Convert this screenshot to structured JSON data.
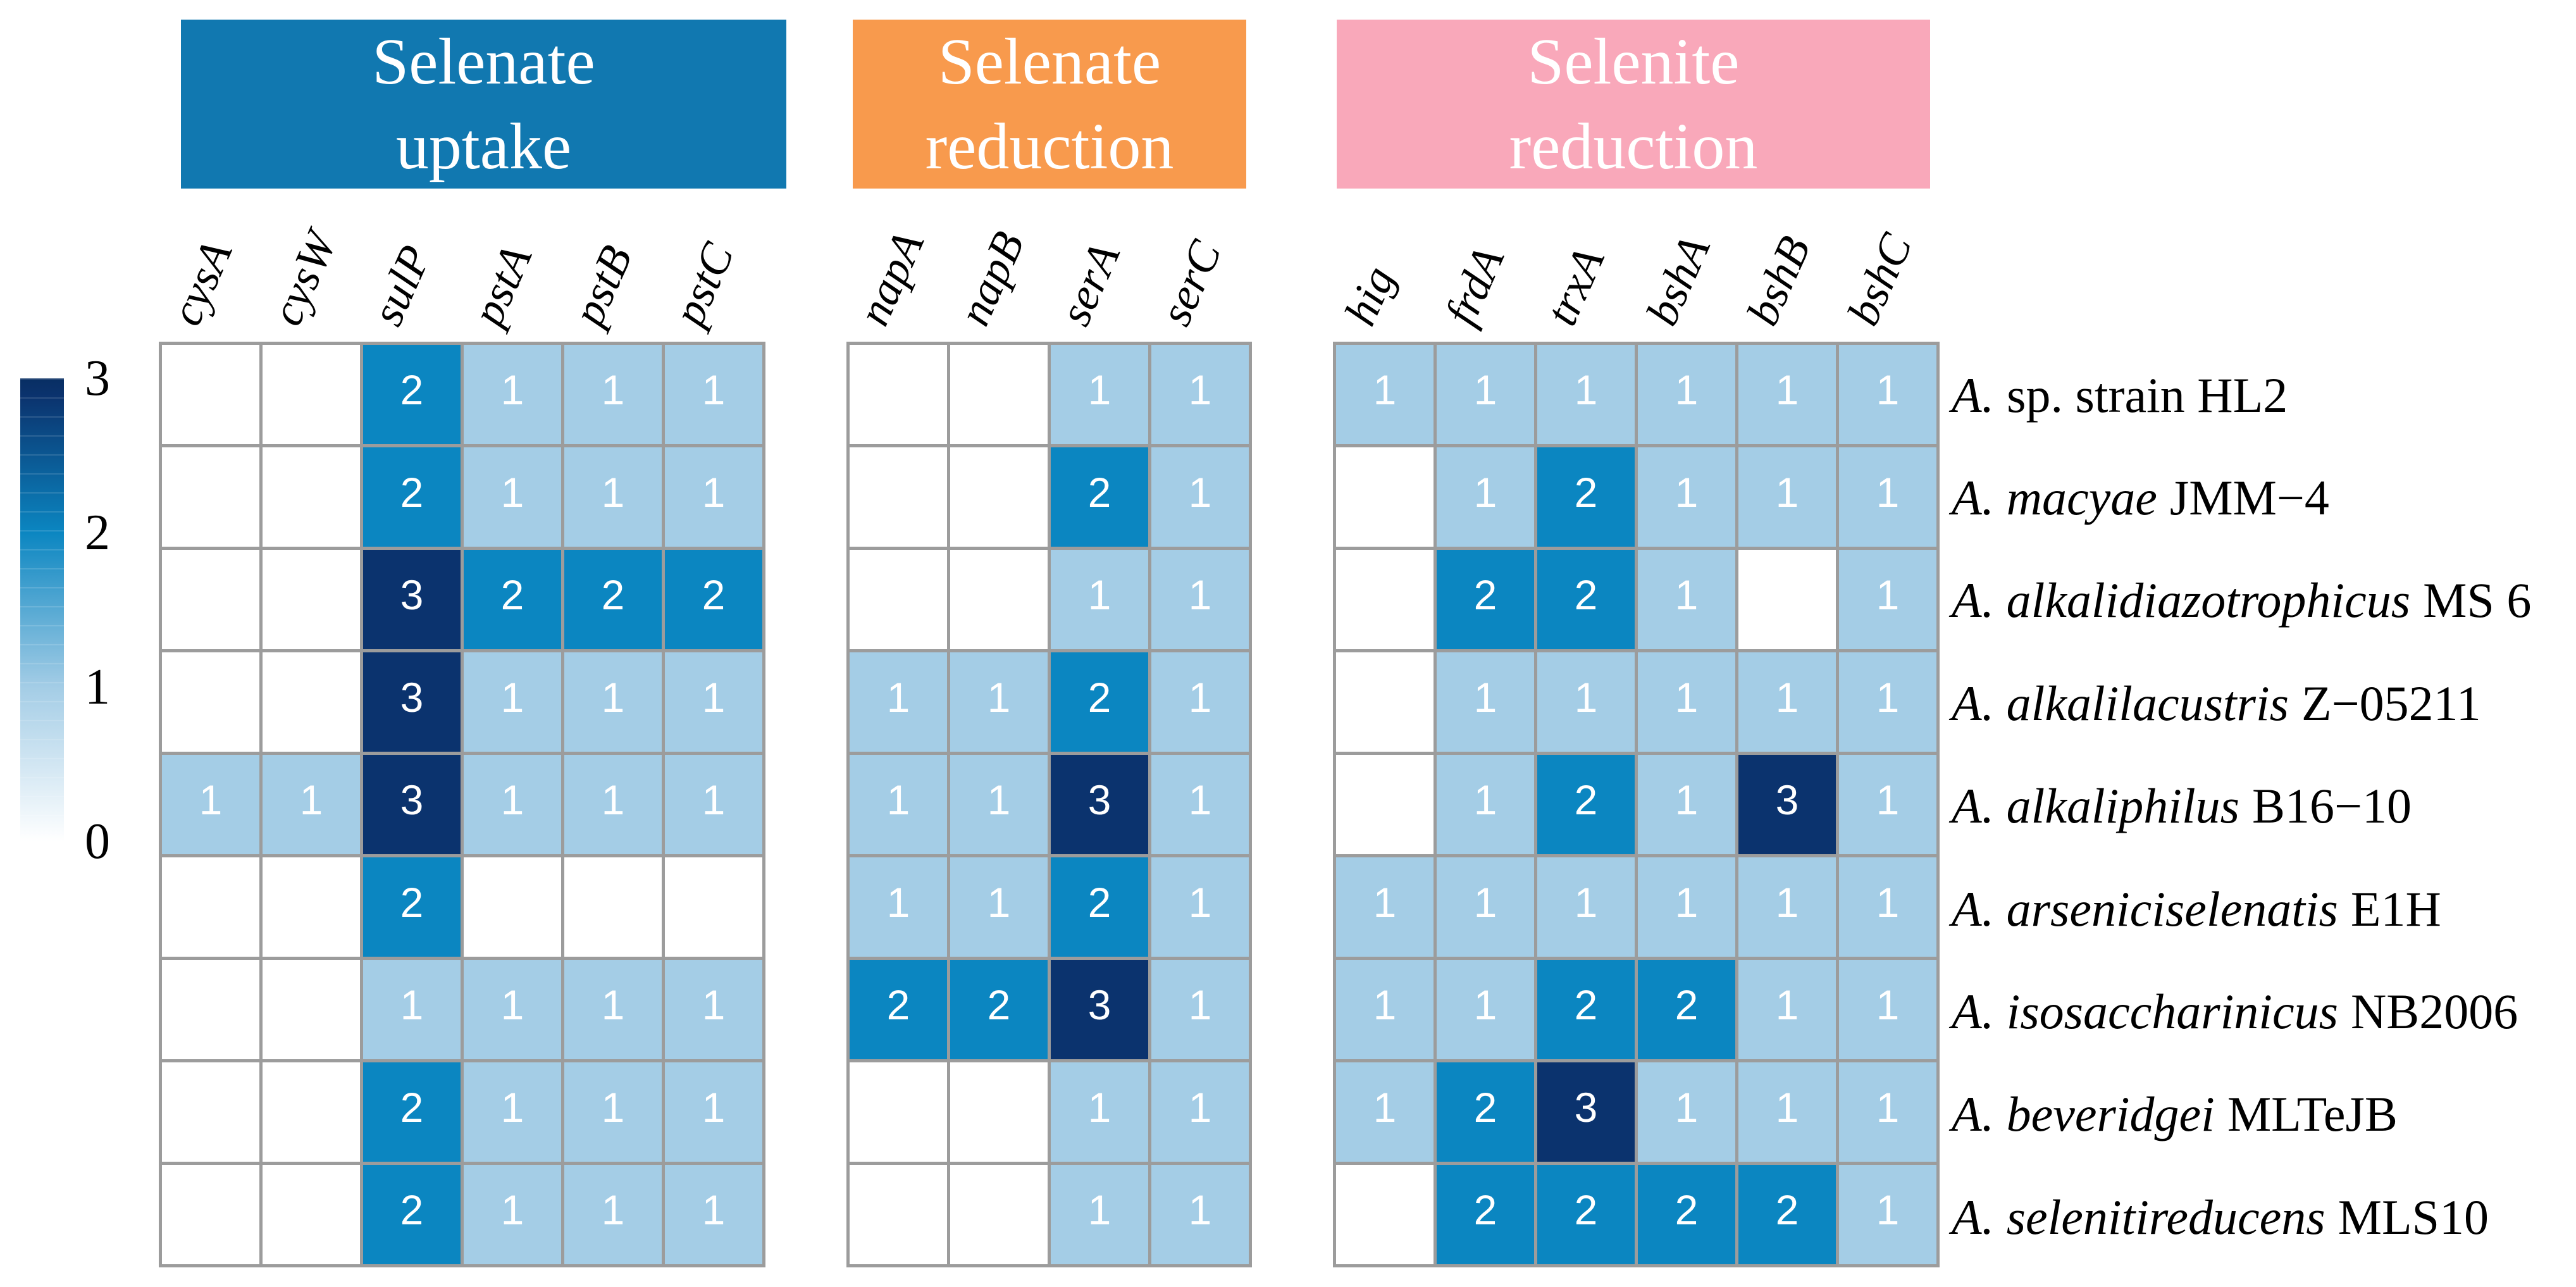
{
  "legend": {
    "ticks": [
      "3",
      "2",
      "1",
      "0"
    ]
  },
  "colors": {
    "grid_line": "#9c9c9c",
    "cell_value_0": "#ffffff",
    "cell_value_1": "#a4cde6",
    "cell_value_2": "#0b86c1",
    "cell_value_3": "#0b336e",
    "header_selenate_uptake": "#1178b0",
    "header_selenate_reduction": "#f89a4d",
    "header_selenite_reduction": "#f9a8ba",
    "colorbar_top": "#082e63"
  },
  "rows": [
    {
      "italic": "A.",
      "regular": "sp. strain HL2"
    },
    {
      "italic": "A. macyae",
      "regular": "JMM−4"
    },
    {
      "italic": "A. alkalidiazotrophicus",
      "regular": "MS 6"
    },
    {
      "italic": "A. alkalilacustris",
      "regular": "Z−05211"
    },
    {
      "italic": "A. alkaliphilus",
      "regular": "B16−10"
    },
    {
      "italic": "A. arseniciselenatis",
      "regular": "E1H"
    },
    {
      "italic": "A. isosaccharinicus",
      "regular": "NB2006"
    },
    {
      "italic": "A. beveridgei",
      "regular": "MLTeJB"
    },
    {
      "italic": "A. selenitireducens",
      "regular": "MLS10"
    }
  ],
  "chart_data": {
    "type": "heatmap",
    "colorbar": {
      "min": 0,
      "max": 3,
      "tick_labels": [
        3,
        2,
        1,
        0
      ],
      "position": "left"
    },
    "value_colors": {
      "0": "#ffffff",
      "1": "#a4cde6",
      "2": "#0b86c1",
      "3": "#0b336e"
    },
    "row_labels": [
      "A. sp. strain HL2",
      "A. macyae JMM−4",
      "A. alkalidiazotrophicus MS 6",
      "A. alkalilacustris Z−05211",
      "A. alkaliphilus B16−10",
      "A. arseniciselenatis E1H",
      "A. isosaccharinicus NB2006",
      "A. beveridgei MLTeJB",
      "A. selenitireducens MLS10"
    ],
    "panels": [
      {
        "title_lines": [
          "Selenate",
          "uptake"
        ],
        "header_color": "#1178b0",
        "genes": [
          "cysA",
          "cysW",
          "sulP",
          "pstA",
          "pstB",
          "pstC"
        ],
        "values": [
          [
            0,
            0,
            2,
            1,
            1,
            1
          ],
          [
            0,
            0,
            2,
            1,
            1,
            1
          ],
          [
            0,
            0,
            3,
            2,
            2,
            2
          ],
          [
            0,
            0,
            3,
            1,
            1,
            1
          ],
          [
            1,
            1,
            3,
            1,
            1,
            1
          ],
          [
            0,
            0,
            2,
            0,
            0,
            0
          ],
          [
            0,
            0,
            1,
            1,
            1,
            1
          ],
          [
            0,
            0,
            2,
            1,
            1,
            1
          ],
          [
            0,
            0,
            2,
            1,
            1,
            1
          ]
        ]
      },
      {
        "title_lines": [
          "Selenate",
          "reduction"
        ],
        "header_color": "#f89a4d",
        "genes": [
          "napA",
          "napB",
          "serA",
          "serC"
        ],
        "values": [
          [
            0,
            0,
            1,
            1
          ],
          [
            0,
            0,
            2,
            1
          ],
          [
            0,
            0,
            1,
            1
          ],
          [
            1,
            1,
            2,
            1
          ],
          [
            1,
            1,
            3,
            1
          ],
          [
            1,
            1,
            2,
            1
          ],
          [
            2,
            2,
            3,
            1
          ],
          [
            0,
            0,
            1,
            1
          ],
          [
            0,
            0,
            1,
            1
          ]
        ]
      },
      {
        "title_lines": [
          "Selenite",
          "reduction"
        ],
        "header_color": "#f9a8ba",
        "genes": [
          "hig",
          "frdA",
          "trxA",
          "bshA",
          "bshB",
          "bshC"
        ],
        "values": [
          [
            1,
            1,
            1,
            1,
            1,
            1
          ],
          [
            0,
            1,
            2,
            1,
            1,
            1
          ],
          [
            0,
            2,
            2,
            1,
            0,
            1
          ],
          [
            0,
            1,
            1,
            1,
            1,
            1
          ],
          [
            0,
            1,
            2,
            1,
            3,
            1
          ],
          [
            1,
            1,
            1,
            1,
            1,
            1
          ],
          [
            1,
            1,
            2,
            2,
            1,
            1
          ],
          [
            1,
            2,
            3,
            1,
            1,
            1
          ],
          [
            0,
            2,
            2,
            2,
            2,
            1
          ]
        ]
      }
    ]
  }
}
